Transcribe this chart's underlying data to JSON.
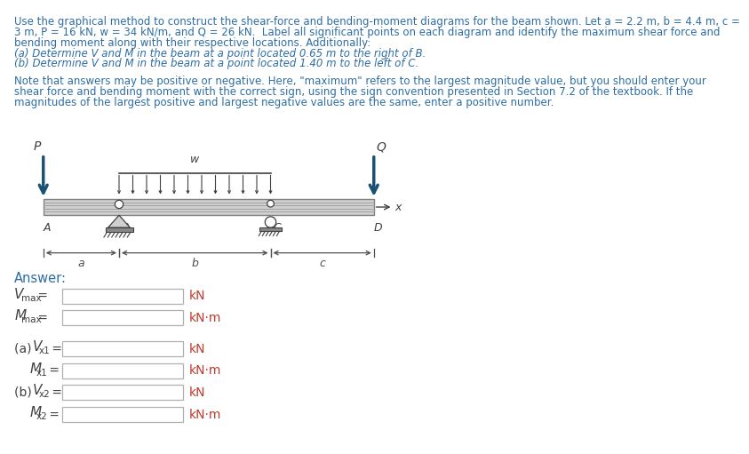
{
  "title_lines": [
    "Use the graphical method to construct the shear-force and bending-moment diagrams for the beam shown. Let a = 2.2 m, b = 4.4 m, c =",
    "3 m, P = 16 kN, w = 34 kN/m, and Q = 26 kN.  Label all significant points on each diagram and identify the maximum shear force and",
    "bending moment along with their respective locations. Additionally:",
    "(a) Determine V and M in the beam at a point located 0.65 m to the right of B.",
    "(b) Determine V and M in the beam at a point located 1.40 m to the left of C."
  ],
  "note_lines": [
    "Note that answers may be positive or negative. Here, \"maximum\" refers to the largest magnitude value, but you should enter your",
    "shear force and bending moment with the correct sign, using the sign convention presented in Section 7.2 of the textbook. If the",
    "magnitudes of the largest positive and largest negative values are the same, enter a positive number."
  ],
  "text_color": "#2e6da4",
  "dark_text": "#404040",
  "unit_color": "#c0392b",
  "arrow_color": "#1a5276",
  "bg_color": "#ffffff",
  "beam_fill": "#d0d0d0",
  "beam_edge": "#808080",
  "dim_color": "#505050",
  "box_edge": "#b0b0b0",
  "title_font_size": 8.5,
  "note_font_size": 8.5,
  "answer_font_size": 10.5,
  "label_font_size": 9.5
}
